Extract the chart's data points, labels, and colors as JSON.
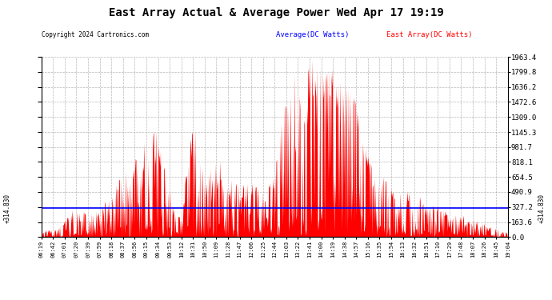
{
  "title": "East Array Actual & Average Power Wed Apr 17 19:19",
  "copyright": "Copyright 2024 Cartronics.com",
  "average_value": 314.83,
  "y_max": 1963.4,
  "y_min": 0.0,
  "y_ticks": [
    0.0,
    163.6,
    327.2,
    490.9,
    654.5,
    818.1,
    981.7,
    1145.3,
    1309.0,
    1472.6,
    1636.2,
    1799.8,
    1963.4
  ],
  "y_tick_labels": [
    "0.0",
    "163.6",
    "327.2",
    "490.9",
    "654.5",
    "818.1",
    "981.7",
    "1145.3",
    "1309.0",
    "1472.6",
    "1636.2",
    "1799.8",
    "1963.4"
  ],
  "x_labels": [
    "06:19",
    "06:42",
    "07:01",
    "07:20",
    "07:39",
    "07:59",
    "08:18",
    "08:37",
    "08:56",
    "09:15",
    "09:34",
    "09:53",
    "10:12",
    "10:31",
    "10:50",
    "11:09",
    "11:28",
    "11:47",
    "12:06",
    "12:25",
    "12:44",
    "13:03",
    "13:22",
    "13:41",
    "14:00",
    "14:19",
    "14:38",
    "14:57",
    "15:16",
    "15:35",
    "15:54",
    "16:13",
    "16:32",
    "16:51",
    "17:10",
    "17:29",
    "17:48",
    "18:07",
    "18:26",
    "18:45",
    "19:04"
  ],
  "fill_color": "red",
  "line_color": "blue",
  "grid_color": "#999999",
  "background_color": "#ffffff",
  "annotation_left": "+314.830",
  "annotation_right": "+314.830",
  "avg_label_color": "blue",
  "east_label_color": "red"
}
